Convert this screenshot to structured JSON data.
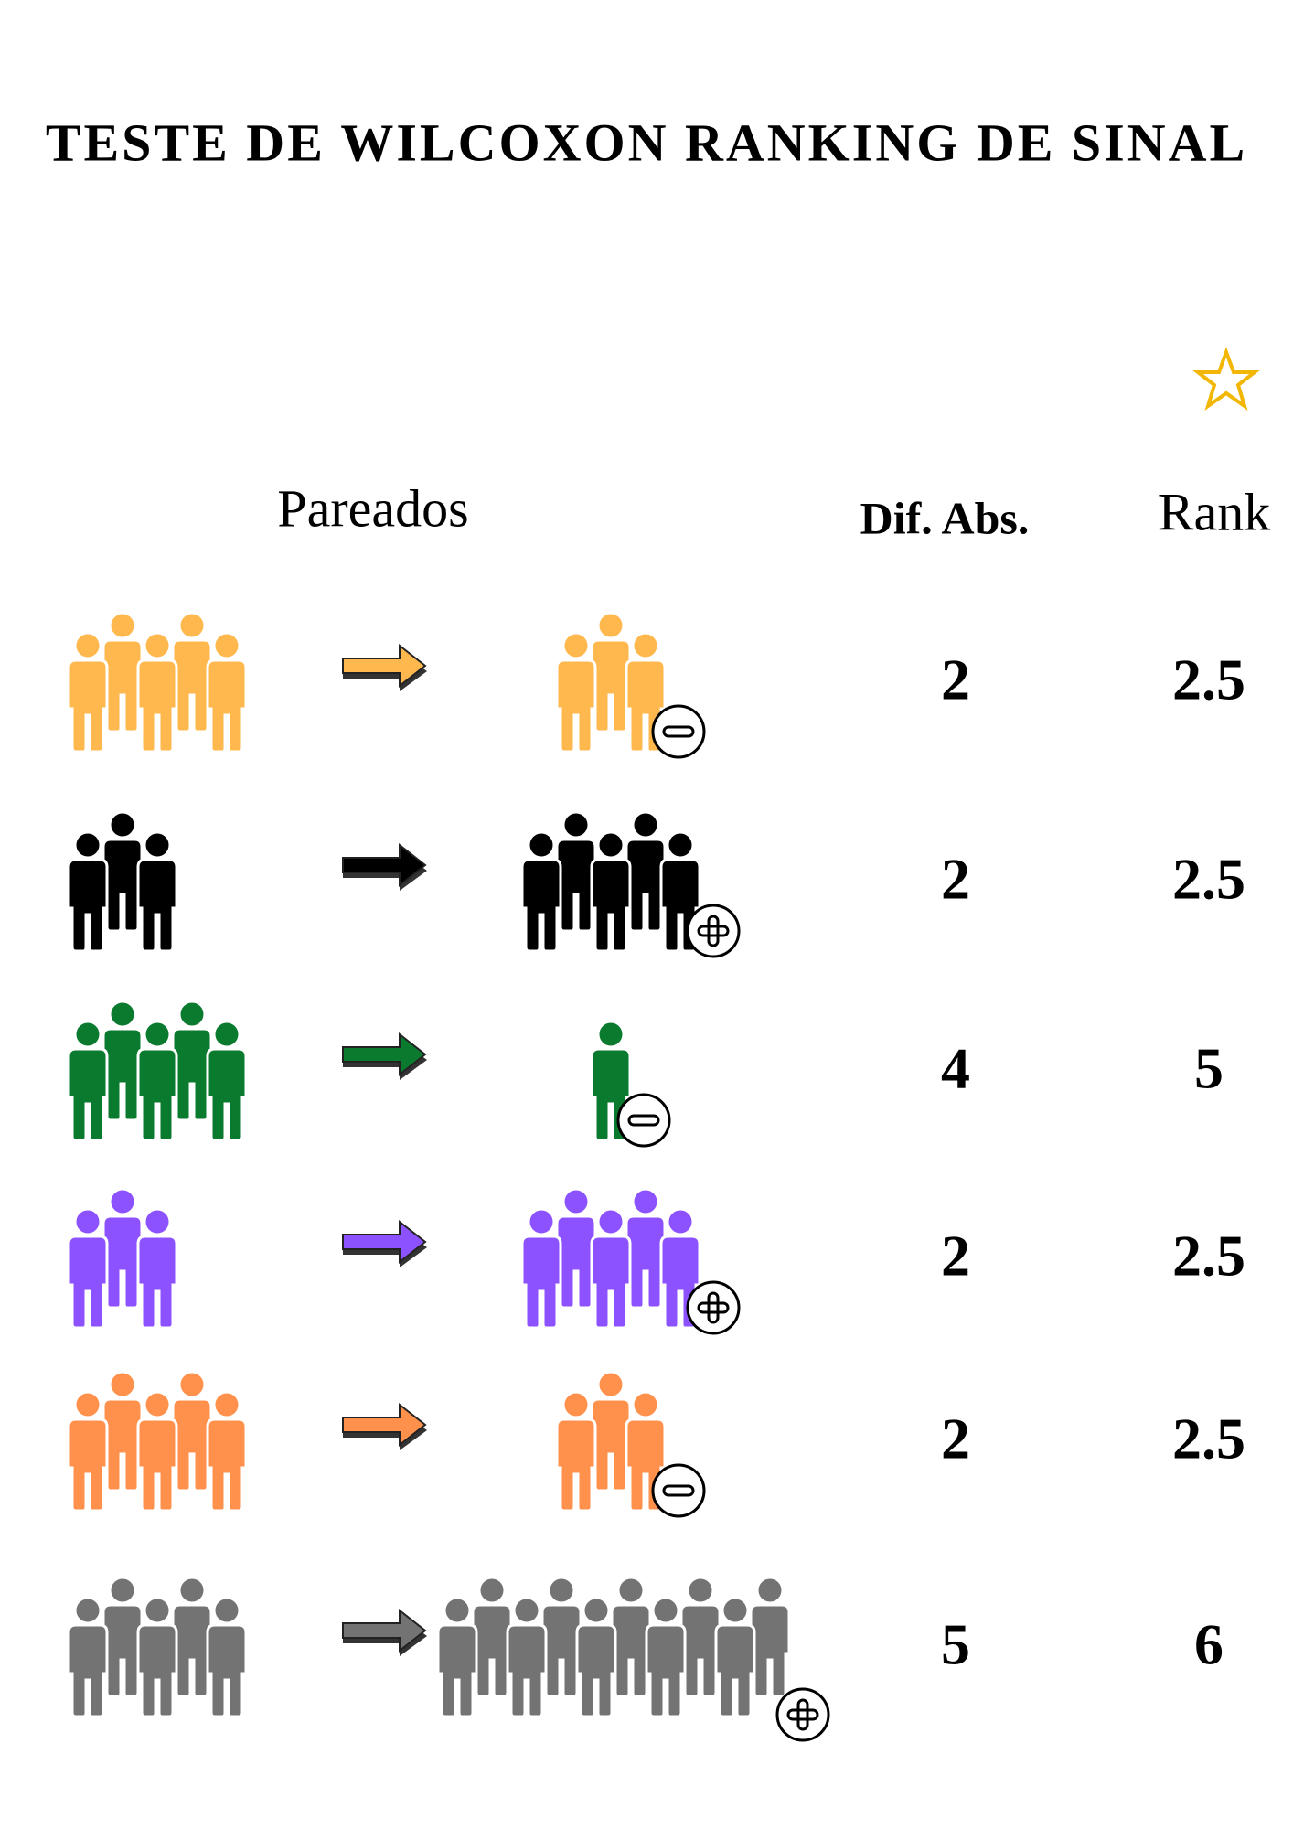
{
  "title": "TESTE DE WILCOXON RANKING DE SINAL",
  "headers": {
    "pairs": "Pareados",
    "diff": "Dif. Abs.",
    "rank": "Rank"
  },
  "rows": [
    {
      "color": "#ffb84d",
      "before": 5,
      "after": 3,
      "diff": 2,
      "rank": 2.5
    },
    {
      "color": "#000000",
      "before": 3,
      "after": 5,
      "diff": 2,
      "rank": 2.5
    },
    {
      "color": "#0a7a2f",
      "before": 5,
      "after": 1,
      "diff": 4,
      "rank": 5
    },
    {
      "color": "#8c52ff",
      "before": 3,
      "after": 5,
      "diff": 2,
      "rank": 2.5
    },
    {
      "color": "#ff914d",
      "before": 5,
      "after": 3,
      "diff": 2,
      "rank": 2.5
    },
    {
      "color": "#737373",
      "before": 5,
      "after": 10,
      "diff": 5,
      "rank": 6
    }
  ]
}
